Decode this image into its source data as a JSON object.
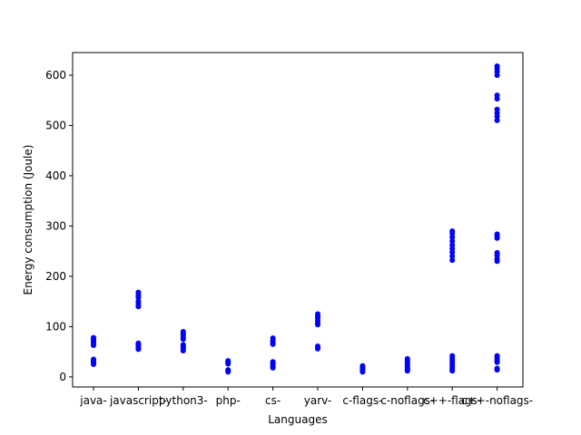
{
  "chart_data": {
    "type": "scatter",
    "title": "",
    "xlabel": "Languages",
    "ylabel": "Energy consumption (Joule)",
    "categories": [
      "java-",
      "javascript-",
      "python3-",
      "php-",
      "cs-",
      "yarv-",
      "c-flags-",
      "c-noflags-",
      "c++-flags-",
      "c++-noflags-"
    ],
    "ylim": [
      -20,
      645
    ],
    "yticks": [
      0,
      100,
      200,
      300,
      400,
      500,
      600
    ],
    "grid": false,
    "marker_color": "#0000ff",
    "series": [
      {
        "values": [
          [
            25,
            27,
            29,
            31,
            33,
            35,
            63,
            66,
            69,
            72,
            75,
            78
          ],
          [
            55,
            58,
            61,
            64,
            67,
            140,
            145,
            150,
            158,
            163,
            168
          ],
          [
            52,
            55,
            58,
            61,
            64,
            75,
            79,
            83,
            87,
            90
          ],
          [
            10,
            12,
            14,
            26,
            28,
            30,
            32
          ],
          [
            18,
            21,
            24,
            27,
            30,
            65,
            68,
            72,
            77
          ],
          [
            56,
            58,
            61,
            104,
            107,
            112,
            117,
            121,
            125
          ],
          [
            10,
            12,
            14,
            16,
            18,
            20,
            22
          ],
          [
            12,
            15,
            18,
            21,
            25,
            29,
            33,
            36
          ],
          [
            12,
            15,
            18,
            22,
            26,
            30,
            34,
            38,
            42,
            232,
            240,
            248,
            255,
            262,
            270,
            278,
            285,
            290
          ],
          [
            14,
            17,
            29,
            33,
            37,
            42,
            230,
            235,
            242,
            247,
            276,
            280,
            284,
            510,
            518,
            525,
            532,
            553,
            560,
            600,
            607,
            613,
            618
          ]
        ]
      }
    ]
  }
}
